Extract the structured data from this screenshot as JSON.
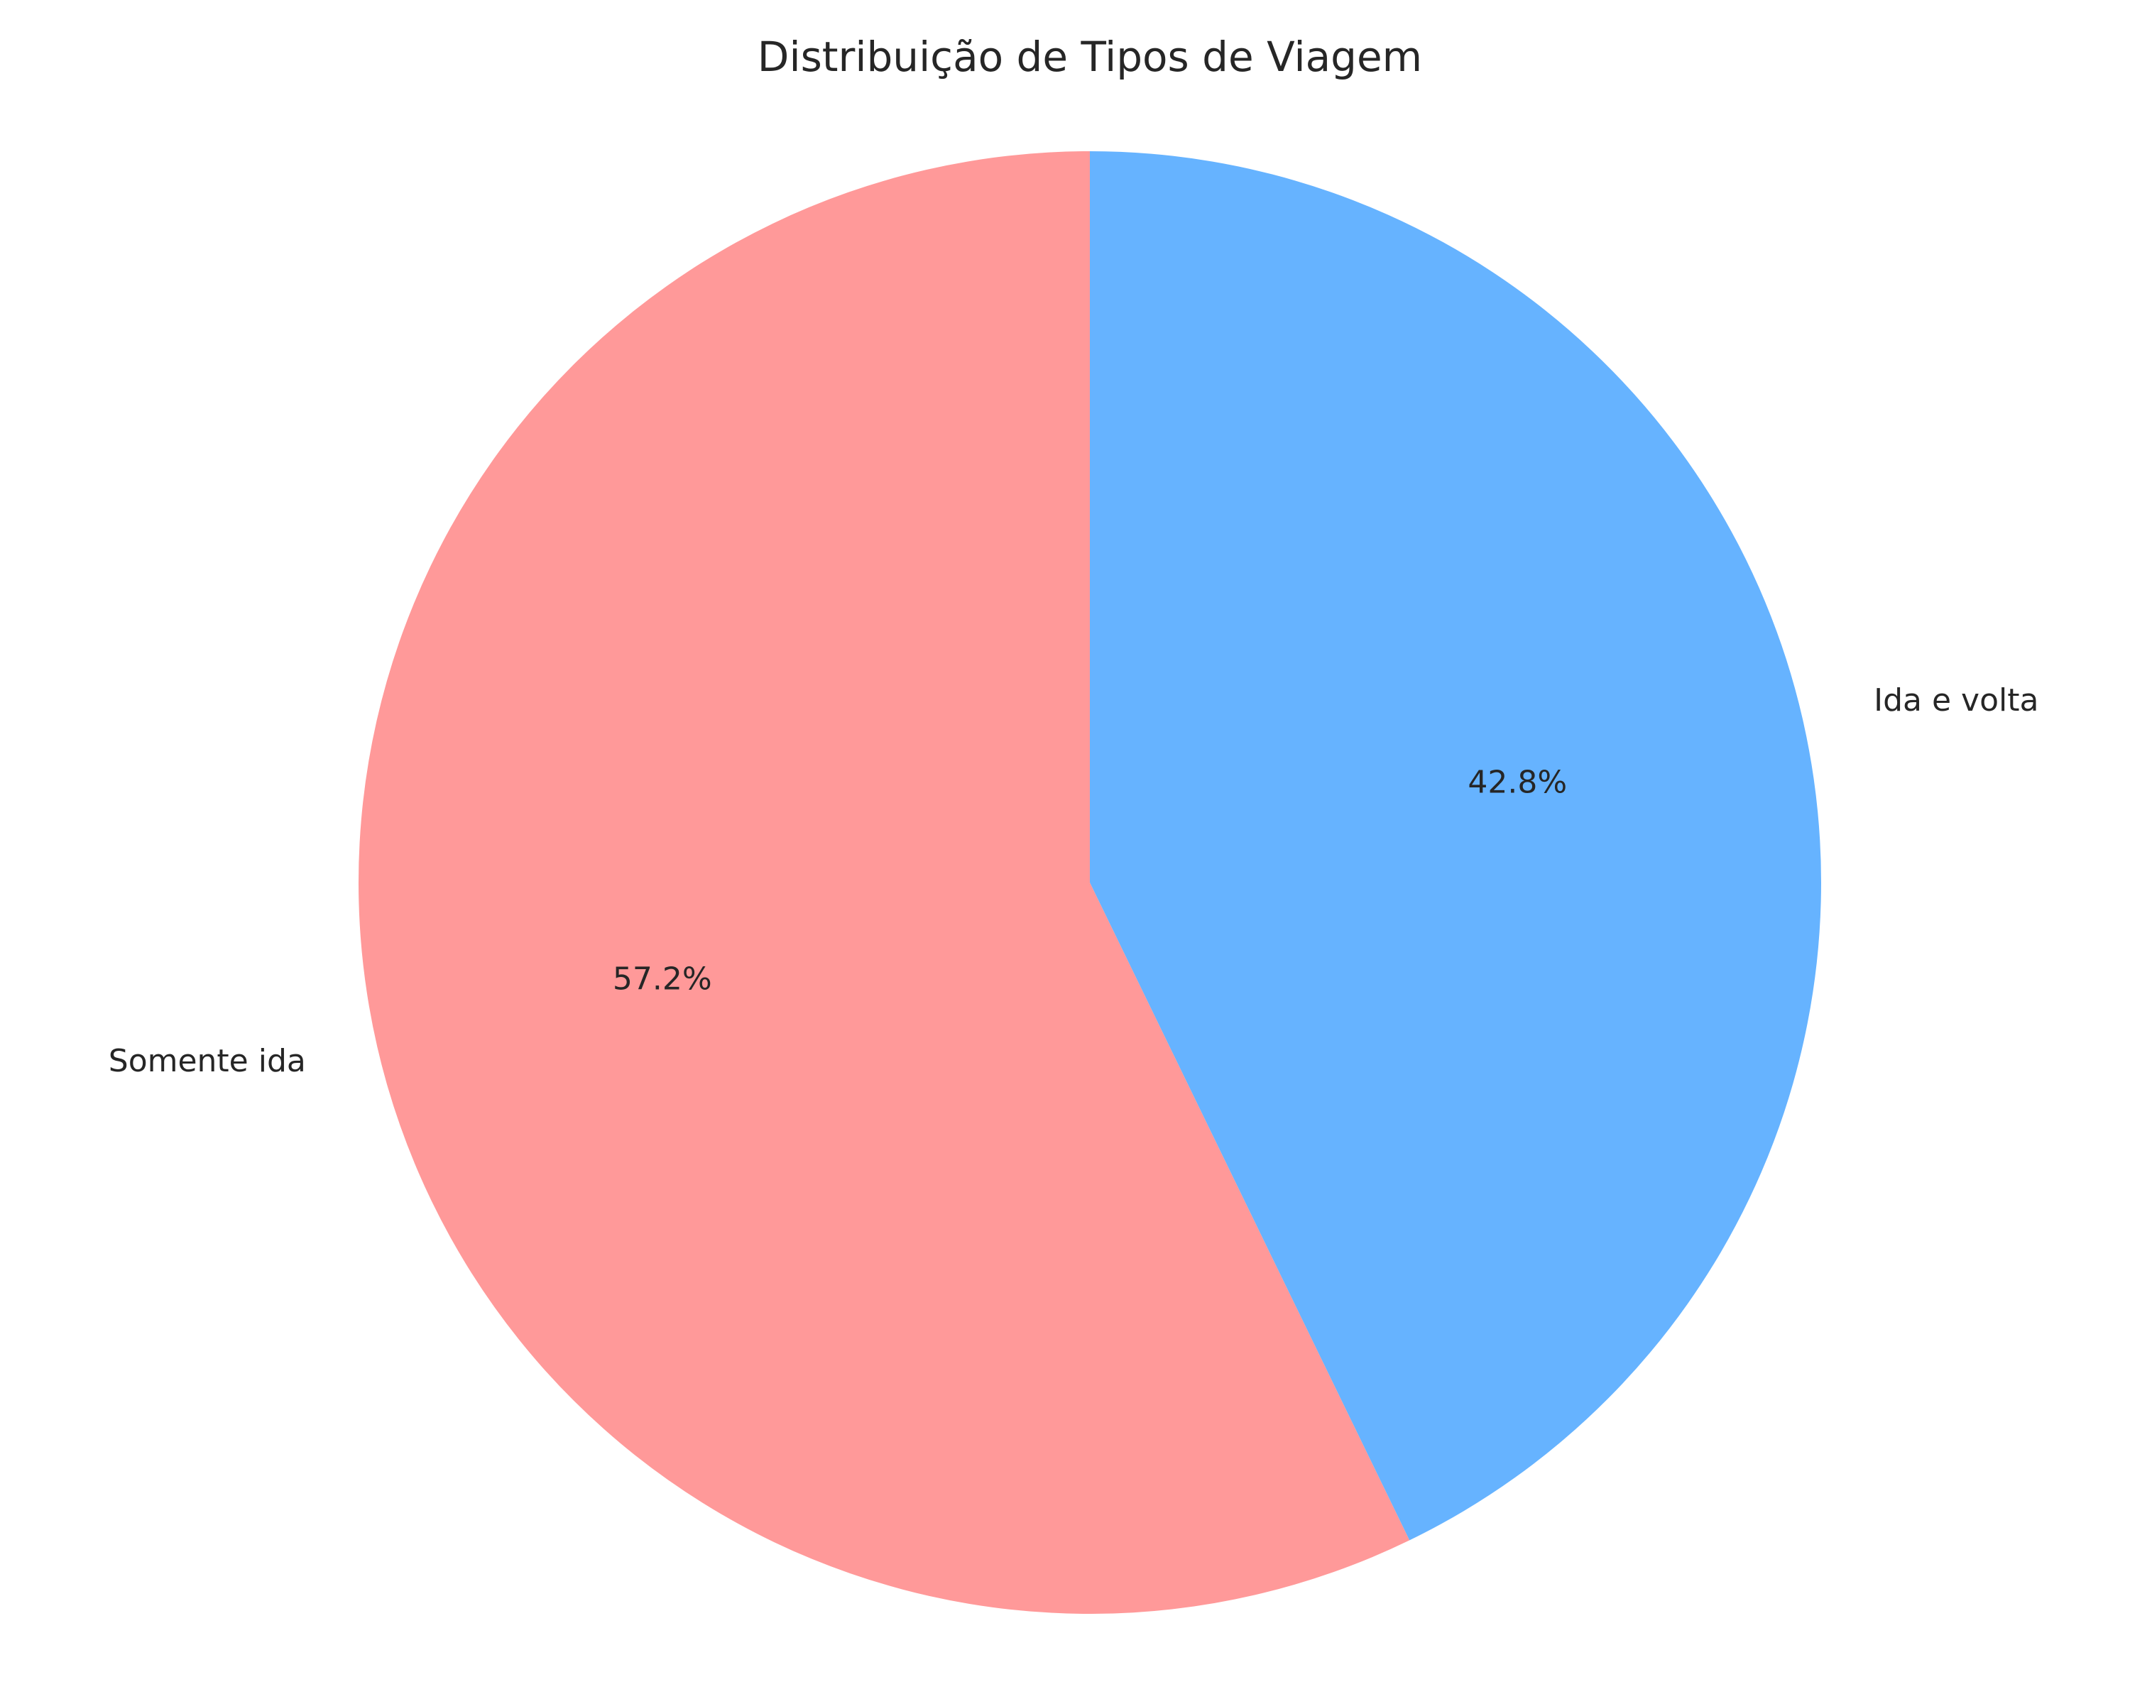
{
  "chart_data": {
    "type": "pie",
    "title": "Distribuição de Tipos de Viagem",
    "slices": [
      {
        "label": "Somente ida",
        "value": 57.2,
        "pct_label": "57.2%",
        "color": "#ff9999"
      },
      {
        "label": "Ida e volta",
        "value": 42.8,
        "pct_label": "42.8%",
        "color": "#66b3ff"
      }
    ],
    "start_angle_deg": 90,
    "direction": "counterclockwise",
    "legend": "none"
  }
}
